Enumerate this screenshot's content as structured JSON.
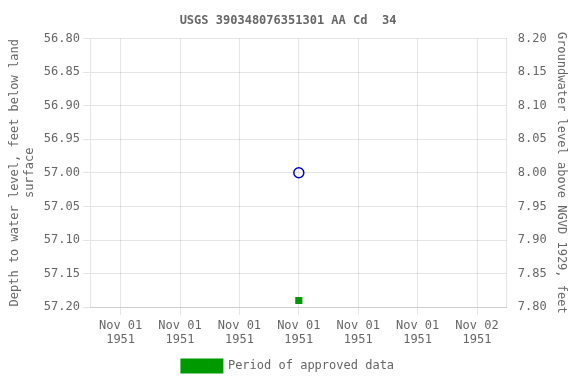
{
  "chart_data": {
    "type": "scatter",
    "title": "USGS 390348076351301 AA Cd  34",
    "ylabel": "Depth to water level, feet below land\nsurface",
    "y2label": "Groundwater level above NGVD 1929, feet",
    "categories": [
      "Nov 01\n1951",
      "Nov 01\n1951",
      "Nov 01\n1951",
      "Nov 01\n1951",
      "Nov 01\n1951",
      "Nov 01\n1951",
      "Nov 02\n1951"
    ],
    "series": [
      {
        "color": "#0000cc",
        "marker": "open_circle",
        "values": [
          null,
          null,
          null,
          57.0,
          null,
          null,
          null
        ]
      },
      {
        "name": "Period of approved data",
        "color": "#009900",
        "marker": "square",
        "values": [
          null,
          null,
          null,
          57.19,
          null,
          null,
          null
        ]
      }
    ],
    "ylim": [
      57.2,
      56.8
    ],
    "yticks": [
      {
        "value": 56.8,
        "label": "56.80"
      },
      56.85,
      {
        "value": 56.9,
        "label": "56.90"
      },
      56.95,
      {
        "value": 57.0,
        "label": "57.00"
      },
      57.05,
      {
        "value": 57.1,
        "label": "57.10"
      },
      57.15,
      {
        "value": 57.2,
        "label": "57.20"
      }
    ],
    "y2lim": [
      7.8,
      8.2
    ],
    "y2ticks": [
      {
        "value": 8.2,
        "label": "8.20"
      },
      8.15,
      {
        "value": 8.1,
        "label": "8.10"
      },
      8.05,
      {
        "value": 8.0,
        "label": "8.00"
      },
      7.95,
      {
        "value": 7.9,
        "label": "7.90"
      },
      7.85,
      {
        "value": 7.8,
        "label": "7.80"
      }
    ],
    "grid": true,
    "legend": "bottom"
  }
}
